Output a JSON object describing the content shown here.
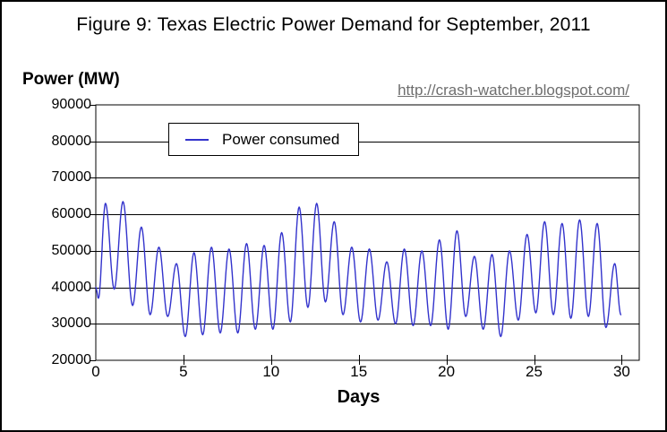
{
  "watermark_url": "http://crash-watcher.blogspot.com/",
  "colors": {
    "line": "#3333cc",
    "axis": "#000000",
    "grid": "#000000",
    "watermark_text": "#6e6e6e",
    "background": "#ffffff",
    "border": "#000000"
  },
  "chart_data": {
    "type": "line",
    "title": "Figure 9: Texas Electric Power Demand for September, 2011",
    "xlabel": "Days",
    "ylabel": "Power (MW)",
    "xlim": [
      0,
      31
    ],
    "ylim": [
      20000,
      90000
    ],
    "xticks": [
      0,
      5,
      10,
      15,
      20,
      25,
      30
    ],
    "yticks": [
      20000,
      30000,
      40000,
      50000,
      60000,
      70000,
      80000,
      90000
    ],
    "grid": "horizontal-only",
    "frame": "full-box",
    "legend": {
      "position": "inside-top-left",
      "entries": [
        {
          "label": "Power consumed",
          "color": "#3333cc"
        }
      ]
    },
    "series": [
      {
        "name": "Power consumed",
        "color": "#3333cc",
        "x_unit": "days",
        "y_unit": "MW",
        "sampling": "daily trough (~x.1) and peak (~x.6) extremes read from curve; smooth oscillation between",
        "points": [
          [
            0.0,
            40000
          ],
          [
            0.15,
            37000
          ],
          [
            0.55,
            63000
          ],
          [
            1.05,
            39500
          ],
          [
            1.55,
            63500
          ],
          [
            2.1,
            35000
          ],
          [
            2.6,
            56500
          ],
          [
            3.1,
            32500
          ],
          [
            3.6,
            51000
          ],
          [
            4.1,
            32000
          ],
          [
            4.6,
            46500
          ],
          [
            5.1,
            26500
          ],
          [
            5.6,
            49500
          ],
          [
            6.1,
            27000
          ],
          [
            6.6,
            51000
          ],
          [
            7.1,
            27500
          ],
          [
            7.6,
            50500
          ],
          [
            8.1,
            27500
          ],
          [
            8.6,
            52000
          ],
          [
            9.1,
            28500
          ],
          [
            9.6,
            51500
          ],
          [
            10.1,
            28500
          ],
          [
            10.6,
            55000
          ],
          [
            11.1,
            30500
          ],
          [
            11.6,
            62000
          ],
          [
            12.1,
            34500
          ],
          [
            12.6,
            63000
          ],
          [
            13.1,
            36000
          ],
          [
            13.6,
            58000
          ],
          [
            14.1,
            32500
          ],
          [
            14.6,
            51000
          ],
          [
            15.1,
            30500
          ],
          [
            15.6,
            50500
          ],
          [
            16.1,
            31000
          ],
          [
            16.6,
            47000
          ],
          [
            17.1,
            30000
          ],
          [
            17.6,
            50500
          ],
          [
            18.1,
            29500
          ],
          [
            18.6,
            50000
          ],
          [
            19.1,
            29500
          ],
          [
            19.6,
            53000
          ],
          [
            20.1,
            28500
          ],
          [
            20.6,
            55500
          ],
          [
            21.1,
            32000
          ],
          [
            21.6,
            48500
          ],
          [
            22.1,
            28500
          ],
          [
            22.6,
            49000
          ],
          [
            23.1,
            26500
          ],
          [
            23.6,
            50000
          ],
          [
            24.1,
            31000
          ],
          [
            24.6,
            54500
          ],
          [
            25.1,
            33000
          ],
          [
            25.6,
            58000
          ],
          [
            26.1,
            32500
          ],
          [
            26.6,
            57500
          ],
          [
            27.1,
            31500
          ],
          [
            27.6,
            58500
          ],
          [
            28.1,
            32000
          ],
          [
            28.6,
            57500
          ],
          [
            29.1,
            29000
          ],
          [
            29.6,
            46500
          ],
          [
            29.95,
            32500
          ]
        ]
      }
    ]
  }
}
